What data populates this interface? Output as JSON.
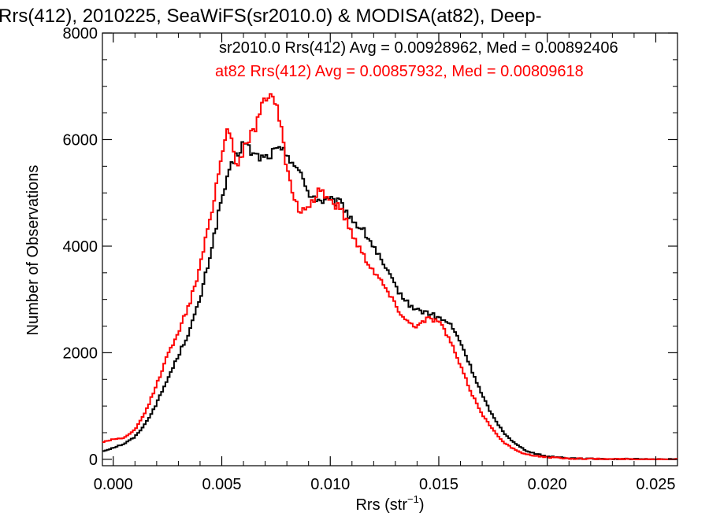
{
  "chart_data": {
    "type": "line",
    "title": "Rrs(412), 2010225, SeaWiFS(sr2010.0) & MODISA(at82), Deep-",
    "xlabel_main": "Rrs (str",
    "xlabel_sup": "−1",
    "xlabel_close": ")",
    "ylabel": "Number of Observations",
    "xlim": [
      -0.0005,
      0.026
    ],
    "ylim": [
      -120,
      8000
    ],
    "xticks": [
      0.0,
      0.005,
      0.01,
      0.015,
      0.02,
      0.025
    ],
    "xtick_labels": [
      "0.000",
      "0.005",
      "0.010",
      "0.015",
      "0.020",
      "0.025"
    ],
    "yticks": [
      0,
      2000,
      4000,
      6000,
      8000
    ],
    "ytick_labels": [
      "0",
      "2000",
      "4000",
      "6000",
      "8000"
    ],
    "legend_placement": "top-right",
    "series": [
      {
        "name": "sr2010.0",
        "color": "#000000",
        "legend": "sr2010.0 Rrs(412) Avg = 0.00928962, Med = 0.00892406",
        "points": [
          [
            -0.0005,
            150
          ],
          [
            0.0,
            220
          ],
          [
            0.0005,
            290
          ],
          [
            0.001,
            420
          ],
          [
            0.0015,
            680
          ],
          [
            0.002,
            1050
          ],
          [
            0.0025,
            1500
          ],
          [
            0.003,
            1950
          ],
          [
            0.0035,
            2400
          ],
          [
            0.004,
            3000
          ],
          [
            0.0045,
            3900
          ],
          [
            0.005,
            4900
          ],
          [
            0.0055,
            5550
          ],
          [
            0.006,
            5950
          ],
          [
            0.0065,
            5700
          ],
          [
            0.007,
            5650
          ],
          [
            0.0075,
            5800
          ],
          [
            0.008,
            5750
          ],
          [
            0.0085,
            5450
          ],
          [
            0.009,
            5000
          ],
          [
            0.0095,
            4850
          ],
          [
            0.01,
            4850
          ],
          [
            0.0105,
            4800
          ],
          [
            0.011,
            4500
          ],
          [
            0.0115,
            4300
          ],
          [
            0.012,
            4000
          ],
          [
            0.0125,
            3600
          ],
          [
            0.013,
            3250
          ],
          [
            0.0135,
            2950
          ],
          [
            0.014,
            2800
          ],
          [
            0.0145,
            2750
          ],
          [
            0.015,
            2650
          ],
          [
            0.0155,
            2550
          ],
          [
            0.016,
            2200
          ],
          [
            0.0165,
            1700
          ],
          [
            0.017,
            1200
          ],
          [
            0.0175,
            800
          ],
          [
            0.018,
            500
          ],
          [
            0.0185,
            300
          ],
          [
            0.019,
            170
          ],
          [
            0.0195,
            100
          ],
          [
            0.02,
            55
          ],
          [
            0.021,
            25
          ],
          [
            0.022,
            10
          ],
          [
            0.024,
            3
          ],
          [
            0.026,
            0
          ]
        ]
      },
      {
        "name": "at82",
        "color": "#ff0000",
        "legend": "at82 Rrs(412) Avg = 0.00857932, Med = 0.00809618",
        "points": [
          [
            -0.0005,
            320
          ],
          [
            0.0,
            380
          ],
          [
            0.0005,
            400
          ],
          [
            0.001,
            550
          ],
          [
            0.0015,
            900
          ],
          [
            0.002,
            1400
          ],
          [
            0.0025,
            1950
          ],
          [
            0.003,
            2400
          ],
          [
            0.0035,
            2900
          ],
          [
            0.004,
            3600
          ],
          [
            0.0045,
            4600
          ],
          [
            0.005,
            5700
          ],
          [
            0.0053,
            6300
          ],
          [
            0.0057,
            5500
          ],
          [
            0.006,
            5800
          ],
          [
            0.0065,
            6200
          ],
          [
            0.007,
            6800
          ],
          [
            0.0073,
            6950
          ],
          [
            0.0077,
            6350
          ],
          [
            0.008,
            5400
          ],
          [
            0.0085,
            4700
          ],
          [
            0.009,
            4650
          ],
          [
            0.0095,
            5100
          ],
          [
            0.01,
            4850
          ],
          [
            0.0105,
            4700
          ],
          [
            0.011,
            4250
          ],
          [
            0.0115,
            3850
          ],
          [
            0.012,
            3550
          ],
          [
            0.0125,
            3250
          ],
          [
            0.013,
            2900
          ],
          [
            0.0135,
            2600
          ],
          [
            0.014,
            2500
          ],
          [
            0.0145,
            2650
          ],
          [
            0.015,
            2600
          ],
          [
            0.0155,
            2250
          ],
          [
            0.016,
            1750
          ],
          [
            0.0165,
            1250
          ],
          [
            0.017,
            850
          ],
          [
            0.0175,
            550
          ],
          [
            0.018,
            320
          ],
          [
            0.0185,
            180
          ],
          [
            0.019,
            90
          ],
          [
            0.02,
            40
          ],
          [
            0.021,
            15
          ],
          [
            0.023,
            4
          ],
          [
            0.026,
            0
          ]
        ]
      }
    ]
  }
}
